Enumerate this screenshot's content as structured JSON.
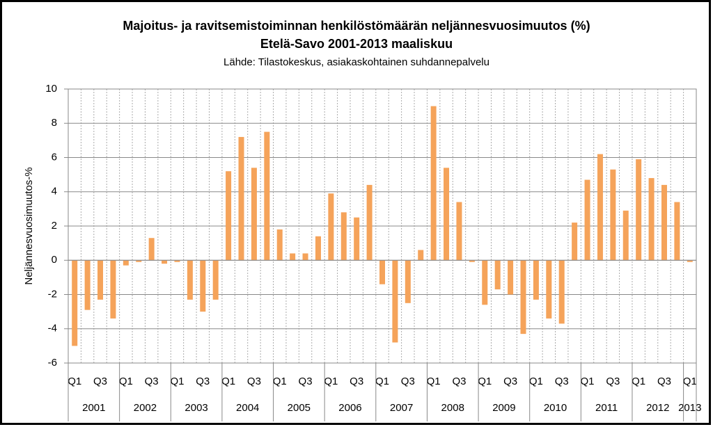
{
  "chart_data": {
    "type": "bar",
    "title": [
      "Majoitus- ja ravitsemistoiminnan henkilöstömäärän neljännesvuosimuutos (%)",
      "Etelä-Savo 2001-2013 maaliskuu"
    ],
    "subtitle": "Lähde: Tilastokeskus, asiakaskohtainen suhdannepalvelu",
    "y_label": "Neljännesvuosimuutos-%",
    "categories": [
      "Q1",
      null,
      "Q3",
      null,
      "Q1",
      null,
      "Q3",
      null,
      "Q1",
      null,
      "Q3",
      null,
      "Q1",
      null,
      "Q3",
      null,
      "Q1",
      null,
      "Q3",
      null,
      "Q1",
      null,
      "Q3",
      null,
      "Q1",
      null,
      "Q3",
      null,
      "Q1",
      null,
      "Q3",
      null,
      "Q1",
      null,
      "Q3",
      null,
      "Q1",
      null,
      "Q3",
      null,
      "Q1",
      null,
      "Q3",
      null,
      "Q1",
      null,
      "Q3",
      null,
      "Q1"
    ],
    "groups": [
      "2001",
      "2002",
      "2003",
      "2004",
      "2005",
      "2006",
      "2007",
      "2008",
      "2009",
      "2010",
      "2011",
      "2012",
      "2013"
    ],
    "values": [
      -5.0,
      -2.9,
      -2.3,
      -3.4,
      -0.3,
      -0.1,
      1.3,
      -0.2,
      -0.1,
      -2.3,
      -3.0,
      -2.3,
      5.2,
      7.2,
      5.4,
      7.5,
      1.8,
      0.4,
      0.4,
      1.4,
      3.9,
      2.8,
      2.5,
      4.4,
      -1.4,
      -4.8,
      -2.5,
      0.6,
      9.0,
      5.4,
      3.4,
      -0.1,
      -2.6,
      -1.7,
      -2.0,
      -4.3,
      -2.3,
      -3.4,
      -3.7,
      2.2,
      4.7,
      6.2,
      5.3,
      2.9,
      5.9,
      4.8,
      4.4,
      3.4,
      -0.1
    ],
    "color": "#f5a35a",
    "ylim": [
      -6,
      10
    ],
    "yticks": [
      -6,
      -4,
      -2,
      0,
      2,
      4,
      6,
      8,
      10
    ],
    "grid": true
  }
}
